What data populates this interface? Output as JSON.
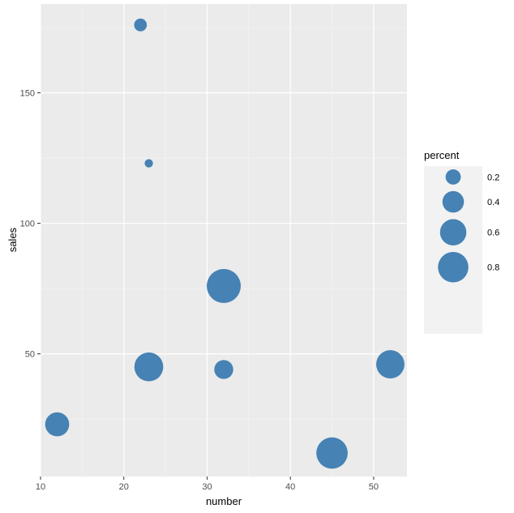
{
  "chart_data": {
    "type": "scatter",
    "xlabel": "number",
    "ylabel": "sales",
    "xlim": [
      10,
      54
    ],
    "ylim": [
      3,
      184
    ],
    "x_ticks": [
      10,
      20,
      30,
      40,
      50
    ],
    "y_ticks": [
      50,
      100,
      150
    ],
    "size_variable": "percent",
    "point_color": "#4682B4",
    "panel_background": "#EBEBEB",
    "grid": true,
    "legend": {
      "title": "percent",
      "position": "right",
      "entries": [
        {
          "label": "0.2",
          "size": 0.2
        },
        {
          "label": "0.4",
          "size": 0.4
        },
        {
          "label": "0.6",
          "size": 0.6
        },
        {
          "label": "0.8",
          "size": 0.8
        }
      ]
    },
    "points": [
      {
        "x": 12,
        "y": 23,
        "size": 0.5
      },
      {
        "x": 22,
        "y": 176,
        "size": 0.14
      },
      {
        "x": 23,
        "y": 123,
        "size": 0.06
      },
      {
        "x": 23,
        "y": 45,
        "size": 0.72
      },
      {
        "x": 32,
        "y": 76,
        "size": 1.0
      },
      {
        "x": 32,
        "y": 44,
        "size": 0.31
      },
      {
        "x": 45,
        "y": 12,
        "size": 0.85
      },
      {
        "x": 52,
        "y": 46,
        "size": 0.69
      }
    ]
  }
}
